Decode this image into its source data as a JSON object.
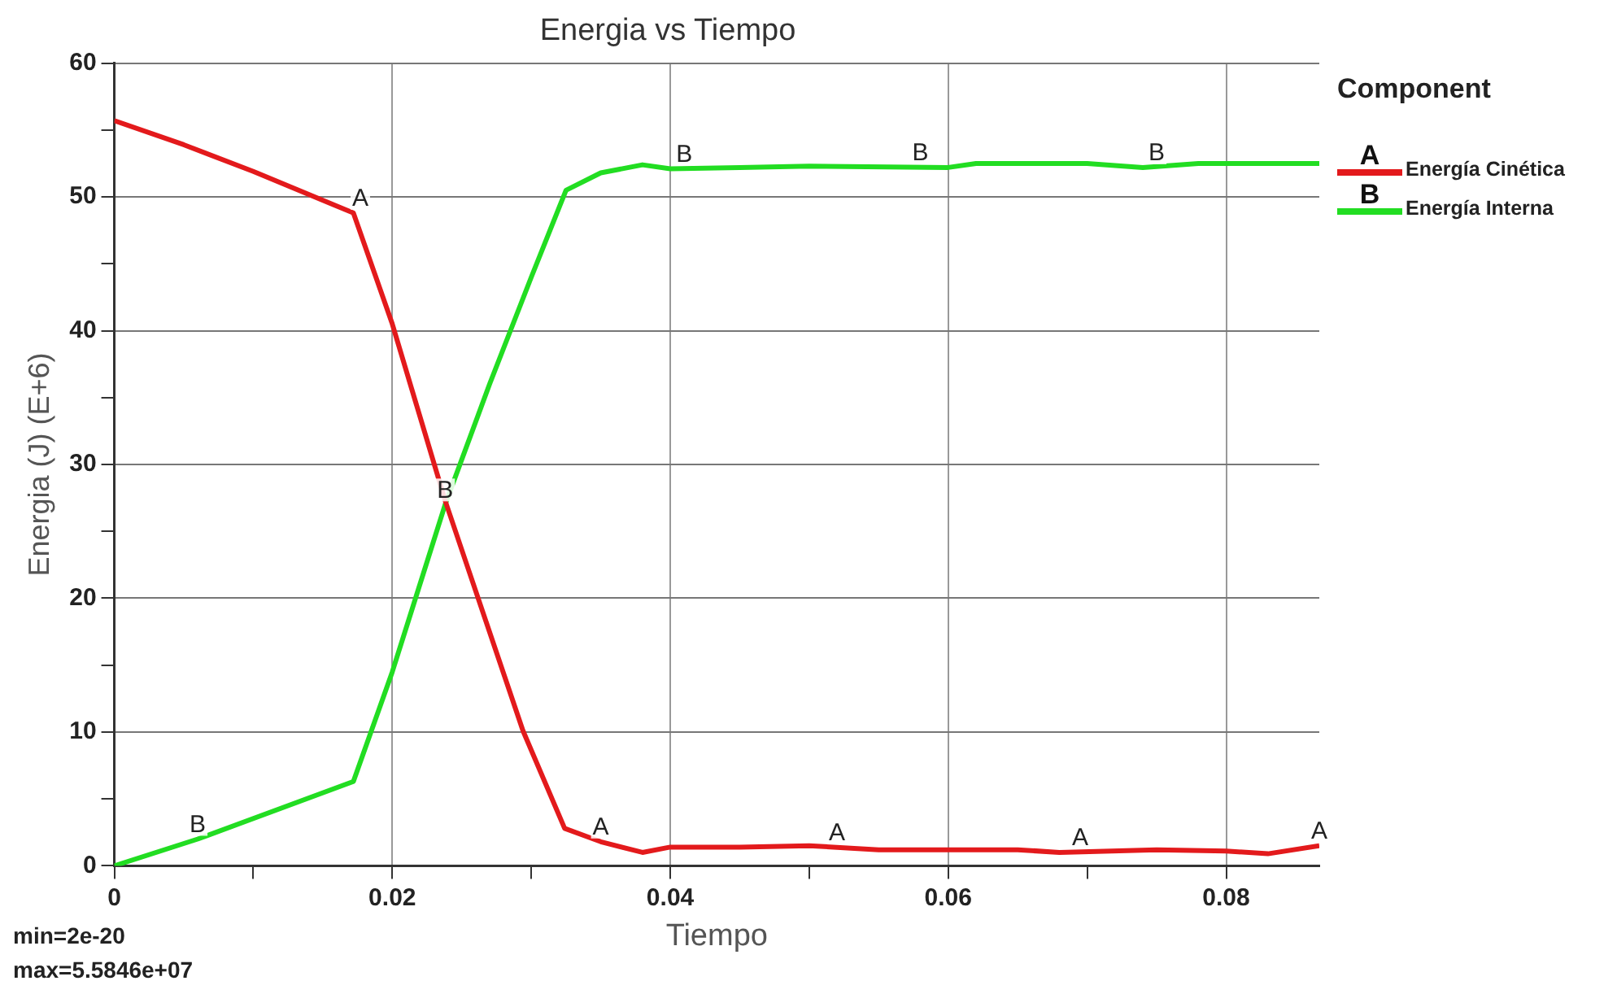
{
  "chart_data": {
    "type": "line",
    "title": "Energia vs Tiempo",
    "xlabel": "Tiempo",
    "ylabel": "Energia (J) (E+6)",
    "legend_title": "Component",
    "legend": "top right",
    "grid": true,
    "marker": "none",
    "line_style": "solid",
    "xlim": [
      0,
      0.0867
    ],
    "xticks": [
      0,
      {
        "value": 0.01,
        "label": null
      },
      0.02,
      {
        "value": 0.03,
        "label": null
      },
      0.04,
      {
        "value": 0.05,
        "label": null
      },
      0.06,
      {
        "value": 0.07,
        "label": null
      },
      0.08
    ],
    "ylim": [
      0,
      60
    ],
    "yticks": [
      0,
      {
        "value": 5,
        "label": null
      },
      10,
      {
        "value": 15,
        "label": null
      },
      20,
      {
        "value": 25,
        "label": null
      },
      30,
      {
        "value": 35,
        "label": null
      },
      40,
      {
        "value": 45,
        "label": null
      },
      50,
      {
        "value": 55,
        "label": null
      },
      60
    ],
    "series": [
      {
        "name": "Energía Cinética",
        "color": "#e31a1c",
        "x": [
          0,
          0.005,
          0.01,
          0.0172,
          0.02,
          0.0238,
          0.0294,
          0.0324,
          0.035,
          0.038,
          0.04,
          0.045,
          0.05,
          0.055,
          0.06,
          0.065,
          0.068,
          0.075,
          0.08,
          0.083,
          0.0867
        ],
        "values": [
          55.7,
          53.9,
          51.9,
          48.8,
          40.5,
          27.3,
          10.1,
          2.8,
          1.8,
          1.0,
          1.4,
          1.4,
          1.5,
          1.2,
          1.2,
          1.2,
          1.0,
          1.2,
          1.1,
          0.9,
          1.5
        ]
      },
      {
        "name": "Energía Interna",
        "color": "#22dd22",
        "x": [
          0,
          0.006,
          0.0172,
          0.02,
          0.0238,
          0.027,
          0.03,
          0.0325,
          0.035,
          0.038,
          0.04,
          0.045,
          0.05,
          0.06,
          0.062,
          0.07,
          0.074,
          0.078,
          0.0867
        ],
        "values": [
          0,
          2,
          6.3,
          14.5,
          27,
          36,
          44,
          50.5,
          51.8,
          52.4,
          52.1,
          52.2,
          52.3,
          52.2,
          52.5,
          52.5,
          52.2,
          52.5,
          52.5
        ]
      }
    ],
    "annotations": [
      {
        "text": "A",
        "x": 0.0177,
        "y": 48.8
      },
      {
        "text": "A",
        "x": 0.035,
        "y": 1.8
      },
      {
        "text": "A",
        "x": 0.052,
        "y": 1.4
      },
      {
        "text": "A",
        "x": 0.0695,
        "y": 1.0
      },
      {
        "text": "A",
        "x": 0.0867,
        "y": 1.5
      },
      {
        "text": "B",
        "x": 0.006,
        "y": 2
      },
      {
        "text": "B",
        "x": 0.0238,
        "y": 27
      },
      {
        "text": "B",
        "x": 0.041,
        "y": 52.1
      },
      {
        "text": "B",
        "x": 0.058,
        "y": 52.2
      },
      {
        "text": "B",
        "x": 0.075,
        "y": 52.2
      },
      "min=2e-20",
      "max=5.5846e+07"
    ]
  }
}
